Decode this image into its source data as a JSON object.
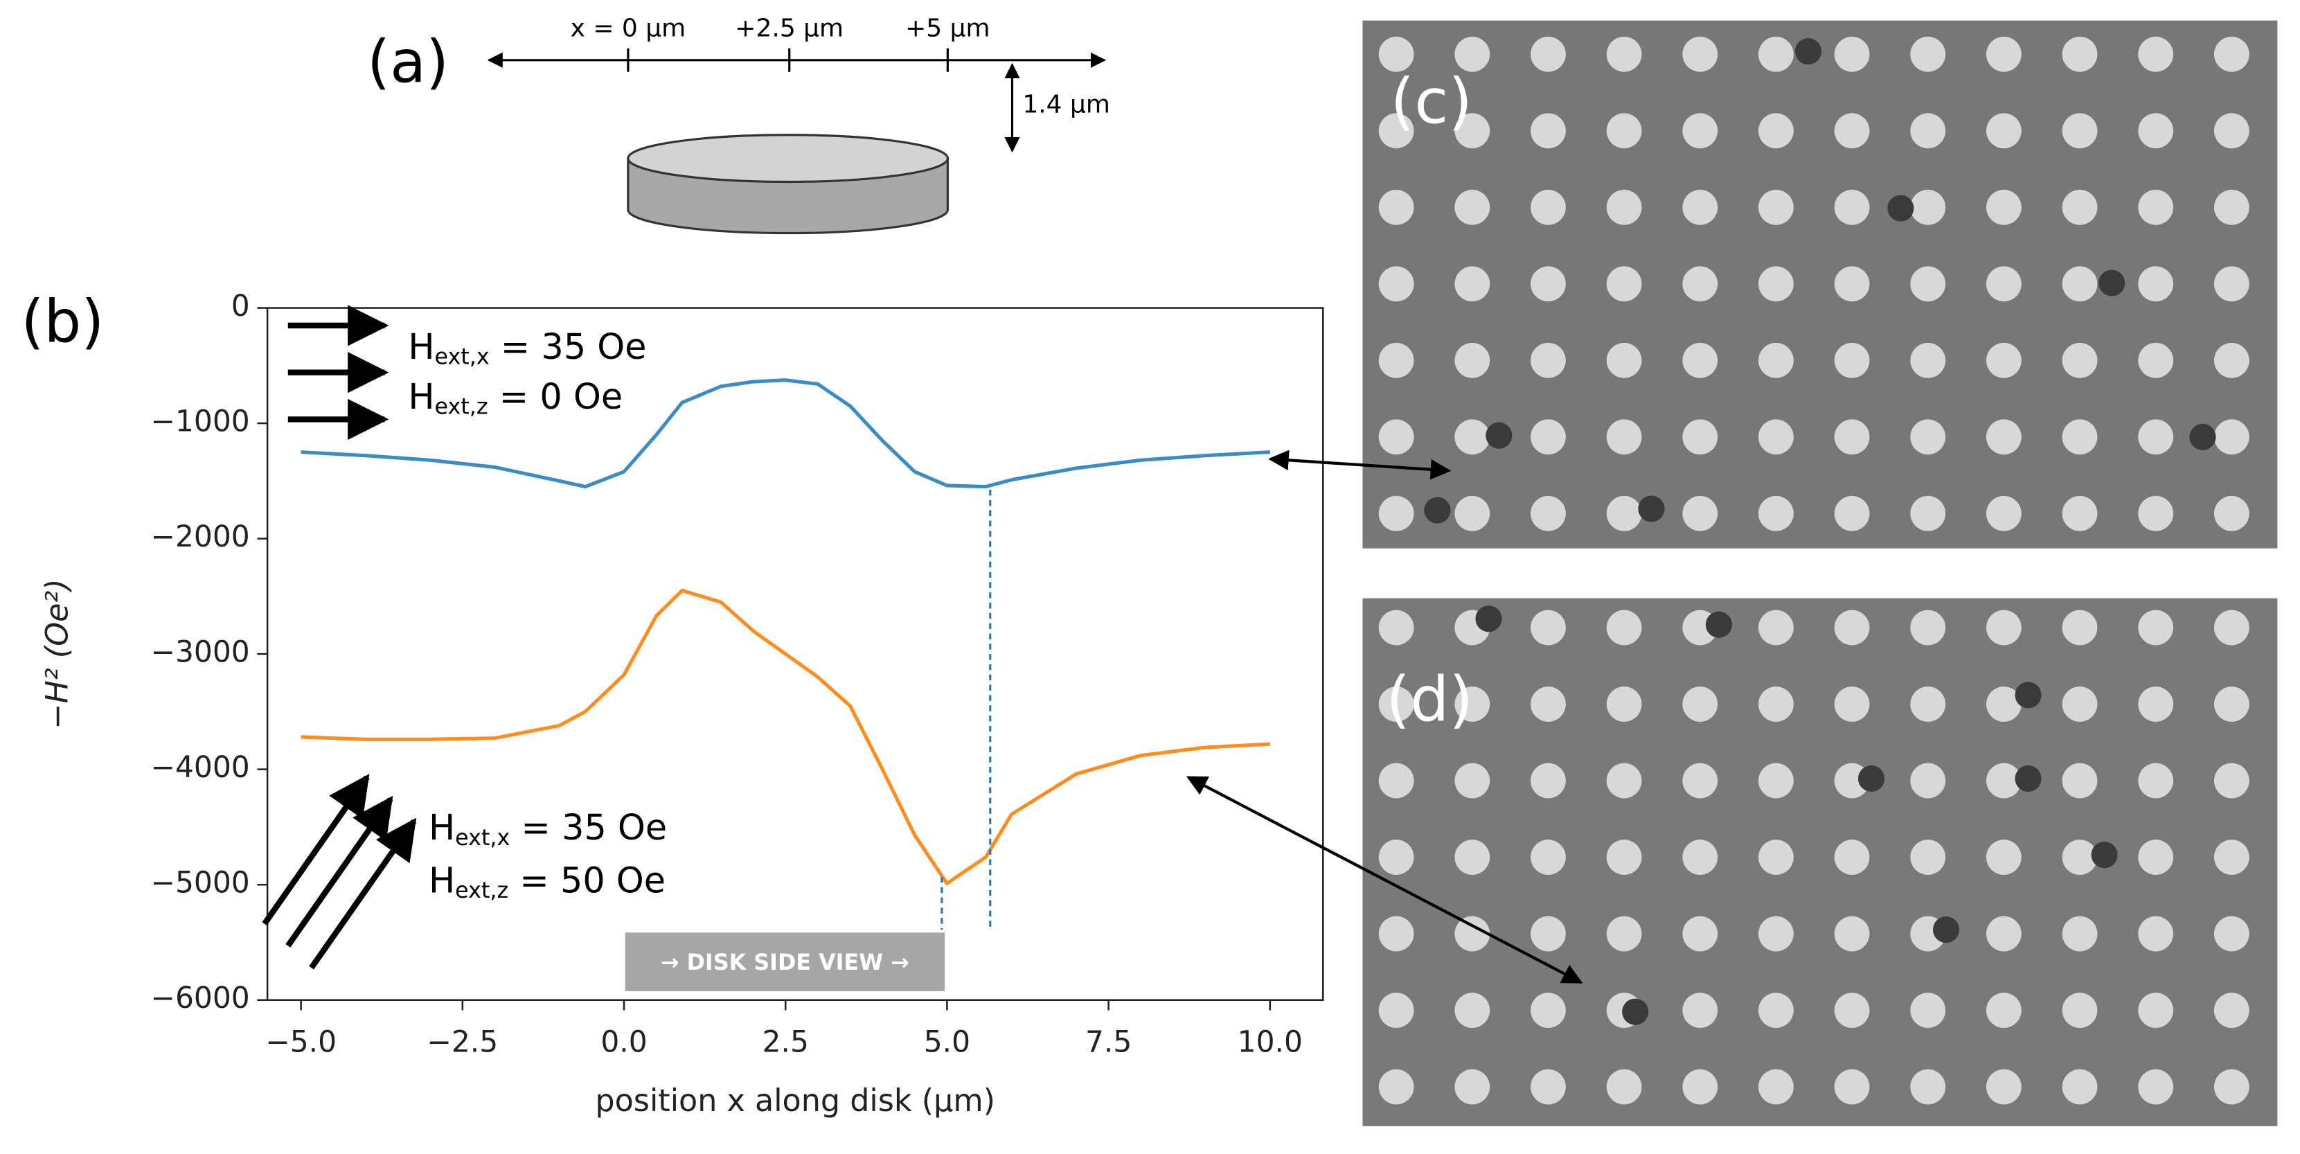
{
  "panels": {
    "a": "(a)",
    "b": "(b)",
    "c": "(c)",
    "d": "(d)"
  },
  "diagram": {
    "ticks": [
      "x = 0 µm",
      "+2.5 µm",
      "+5 µm"
    ],
    "height": "1.4 µm"
  },
  "chart_data": {
    "type": "line",
    "xlabel": "position x along disk (µm)",
    "ylabel": "−H² (Oe²)",
    "x": [
      -5,
      -4,
      -3,
      -2,
      -1,
      -0.6,
      0,
      0.5,
      0.9,
      1.5,
      2,
      2.5,
      3,
      3.5,
      4,
      4.5,
      5,
      5.6,
      6,
      7,
      8,
      9,
      10
    ],
    "series": [
      {
        "name": "blue",
        "color": "#3a8bc6",
        "values": [
          -1250,
          -1280,
          -1320,
          -1380,
          -1500,
          -1550,
          -1420,
          -1100,
          -820,
          -680,
          -640,
          -625,
          -660,
          -850,
          -1150,
          -1420,
          -1540,
          -1550,
          -1490,
          -1390,
          -1320,
          -1280,
          -1250
        ]
      },
      {
        "name": "orange",
        "color": "#ff8c1f",
        "values": [
          -3720,
          -3740,
          -3740,
          -3730,
          -3620,
          -3500,
          -3180,
          -2670,
          -2450,
          -2550,
          -2800,
          -3000,
          -3200,
          -3450,
          -4000,
          -4570,
          -4990,
          -4760,
          -4390,
          -4040,
          -3880,
          -3810,
          -3780
        ]
      }
    ],
    "xlim": [
      -5.52,
      10.82
    ],
    "ylim": [
      -6000,
      0
    ],
    "xticks": [
      {
        "value": -5,
        "label": "−5.0"
      },
      {
        "value": -2.5,
        "label": "−2.5"
      },
      {
        "value": 0,
        "label": "0.0"
      },
      2.5,
      {
        "value": 5,
        "label": "5.0"
      },
      7.5,
      {
        "value": 10,
        "label": "10.0"
      }
    ],
    "yticks": [
      0,
      {
        "value": -1000,
        "label": "−1000"
      },
      {
        "value": -2000,
        "label": "−2000"
      },
      {
        "value": -3000,
        "label": "−3000"
      },
      {
        "value": -4000,
        "label": "−4000"
      },
      {
        "value": -5000,
        "label": "−5000"
      },
      {
        "value": -6000,
        "label": "−6000"
      }
    ],
    "annotations": [
      {
        "symbol": "H",
        "sub": "ext,x",
        "text": " = 35 Oe"
      },
      {
        "symbol": "H",
        "sub": "ext,z",
        "text": " = 0 Oe"
      },
      {
        "symbol": "H",
        "sub": "ext,x",
        "text": " = 35 Oe"
      },
      {
        "symbol": "H",
        "sub": "ext,z",
        "text": " = 50 Oe"
      }
    ],
    "banner": "→ DISK SIDE VIEW →"
  }
}
